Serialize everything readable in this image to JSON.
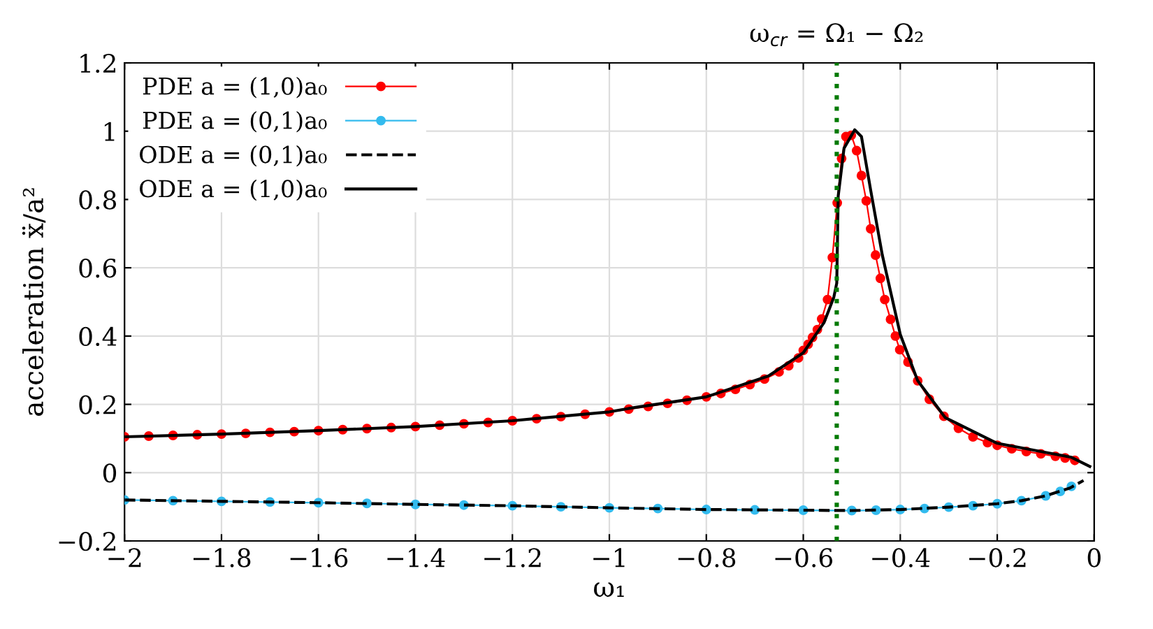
{
  "chart_data": {
    "type": "line",
    "xlabel": "ω₁",
    "ylabel": "acceleration ẍ/a²",
    "xlim": [
      -2,
      0
    ],
    "ylim": [
      -0.2,
      1.2
    ],
    "xticks": [
      {
        "value": -2,
        "label": "−2"
      },
      {
        "value": -1.8,
        "label": "−1.8"
      },
      {
        "value": -1.6,
        "label": "−1.6"
      },
      {
        "value": -1.4,
        "label": "−1.4"
      },
      {
        "value": -1.2,
        "label": "−1.2"
      },
      {
        "value": -1,
        "label": "−1"
      },
      {
        "value": -0.8,
        "label": "−0.8"
      },
      {
        "value": -0.6,
        "label": "−0.6"
      },
      {
        "value": -0.4,
        "label": "−0.4"
      },
      {
        "value": -0.2,
        "label": "−0.2"
      },
      0
    ],
    "yticks": [
      {
        "value": -0.2,
        "label": "−0.2"
      },
      0,
      0.2,
      0.4,
      0.6,
      0.8,
      1,
      1.2
    ],
    "grid": true,
    "legend": "top left",
    "ref_lines": [
      {
        "axis": "x",
        "value": -0.531,
        "label": "ω$_{cr}$ = Ω₁ − Ω₂",
        "color": "#007a00",
        "line_style": "dotted"
      }
    ],
    "series": [
      {
        "name": "PDE a = (1,0)a₀",
        "color": "#ff0000",
        "marker": "circle",
        "line_style": "solid",
        "x": [
          -2,
          -1.95,
          -1.9,
          -1.85,
          -1.8,
          -1.75,
          -1.7,
          -1.65,
          -1.6,
          -1.55,
          -1.5,
          -1.45,
          -1.4,
          -1.35,
          -1.3,
          -1.25,
          -1.2,
          -1.15,
          -1.1,
          -1.05,
          -1.0,
          -0.96,
          -0.92,
          -0.88,
          -0.84,
          -0.8,
          -0.77,
          -0.74,
          -0.71,
          -0.68,
          -0.65,
          -0.63,
          -0.61,
          -0.6,
          -0.59,
          -0.581,
          -0.571,
          -0.562,
          -0.55,
          -0.54,
          -0.53,
          -0.521,
          -0.512,
          -0.501,
          -0.49,
          -0.48,
          -0.47,
          -0.461,
          -0.451,
          -0.441,
          -0.432,
          -0.42,
          -0.41,
          -0.401,
          -0.384,
          -0.364,
          -0.34,
          -0.31,
          -0.28,
          -0.25,
          -0.22,
          -0.2,
          -0.17,
          -0.14,
          -0.11,
          -0.08,
          -0.06,
          -0.04
        ],
        "values": [
          0.105,
          0.107,
          0.109,
          0.111,
          0.113,
          0.115,
          0.118,
          0.12,
          0.123,
          0.126,
          0.129,
          0.132,
          0.135,
          0.139,
          0.143,
          0.147,
          0.152,
          0.158,
          0.164,
          0.171,
          0.178,
          0.186,
          0.194,
          0.203,
          0.212,
          0.222,
          0.232,
          0.244,
          0.258,
          0.274,
          0.295,
          0.313,
          0.336,
          0.358,
          0.376,
          0.396,
          0.419,
          0.45,
          0.507,
          0.63,
          0.79,
          0.92,
          0.984,
          0.988,
          0.943,
          0.87,
          0.796,
          0.714,
          0.637,
          0.569,
          0.507,
          0.449,
          0.4,
          0.36,
          0.324,
          0.269,
          0.215,
          0.165,
          0.13,
          0.105,
          0.088,
          0.08,
          0.07,
          0.062,
          0.055,
          0.048,
          0.043,
          0.036
        ]
      },
      {
        "name": "PDE a = (0,1)a₀",
        "color": "#33bbee",
        "marker": "circle",
        "line_style": "solid",
        "x": [
          -2,
          -1.9,
          -1.8,
          -1.7,
          -1.6,
          -1.5,
          -1.4,
          -1.3,
          -1.2,
          -1.1,
          -1.0,
          -0.9,
          -0.8,
          -0.7,
          -0.6,
          -0.5,
          -0.45,
          -0.4,
          -0.35,
          -0.3,
          -0.25,
          -0.2,
          -0.15,
          -0.1,
          -0.07,
          -0.047
        ],
        "values": [
          -0.08,
          -0.082,
          -0.084,
          -0.086,
          -0.088,
          -0.09,
          -0.093,
          -0.095,
          -0.097,
          -0.1,
          -0.103,
          -0.105,
          -0.108,
          -0.109,
          -0.11,
          -0.111,
          -0.11,
          -0.108,
          -0.105,
          -0.101,
          -0.097,
          -0.091,
          -0.082,
          -0.068,
          -0.055,
          -0.04
        ]
      },
      {
        "name": "ODE a = (0,1)a₀",
        "color": "#000000",
        "marker": "none",
        "line_style": "dashed",
        "x": [
          -2,
          -1.8,
          -1.6,
          -1.4,
          -1.2,
          -1.0,
          -0.8,
          -0.6,
          -0.5,
          -0.4,
          -0.3,
          -0.2,
          -0.15,
          -0.1,
          -0.05,
          -0.022
        ],
        "values": [
          -0.08,
          -0.084,
          -0.088,
          -0.093,
          -0.097,
          -0.103,
          -0.108,
          -0.11,
          -0.111,
          -0.108,
          -0.101,
          -0.091,
          -0.082,
          -0.068,
          -0.045,
          -0.023
        ]
      },
      {
        "name": "ODE a = (1,0)a₀",
        "color": "#000000",
        "marker": "none",
        "line_style": "solid",
        "x": [
          -2,
          -1.8,
          -1.6,
          -1.4,
          -1.2,
          -1.0,
          -0.96,
          -0.8,
          -0.672,
          -0.6,
          -0.557,
          -0.537,
          -0.531,
          -0.528,
          -0.516,
          -0.494,
          -0.48,
          -0.461,
          -0.437,
          -0.4,
          -0.364,
          -0.307,
          -0.2,
          -0.095,
          -0.047,
          -0.009
        ],
        "values": [
          0.105,
          0.113,
          0.123,
          0.135,
          0.152,
          0.178,
          0.188,
          0.222,
          0.283,
          0.351,
          0.44,
          0.514,
          0.555,
          0.81,
          0.95,
          1.004,
          0.984,
          0.827,
          0.637,
          0.405,
          0.269,
          0.161,
          0.086,
          0.058,
          0.045,
          0.018
        ]
      }
    ]
  }
}
